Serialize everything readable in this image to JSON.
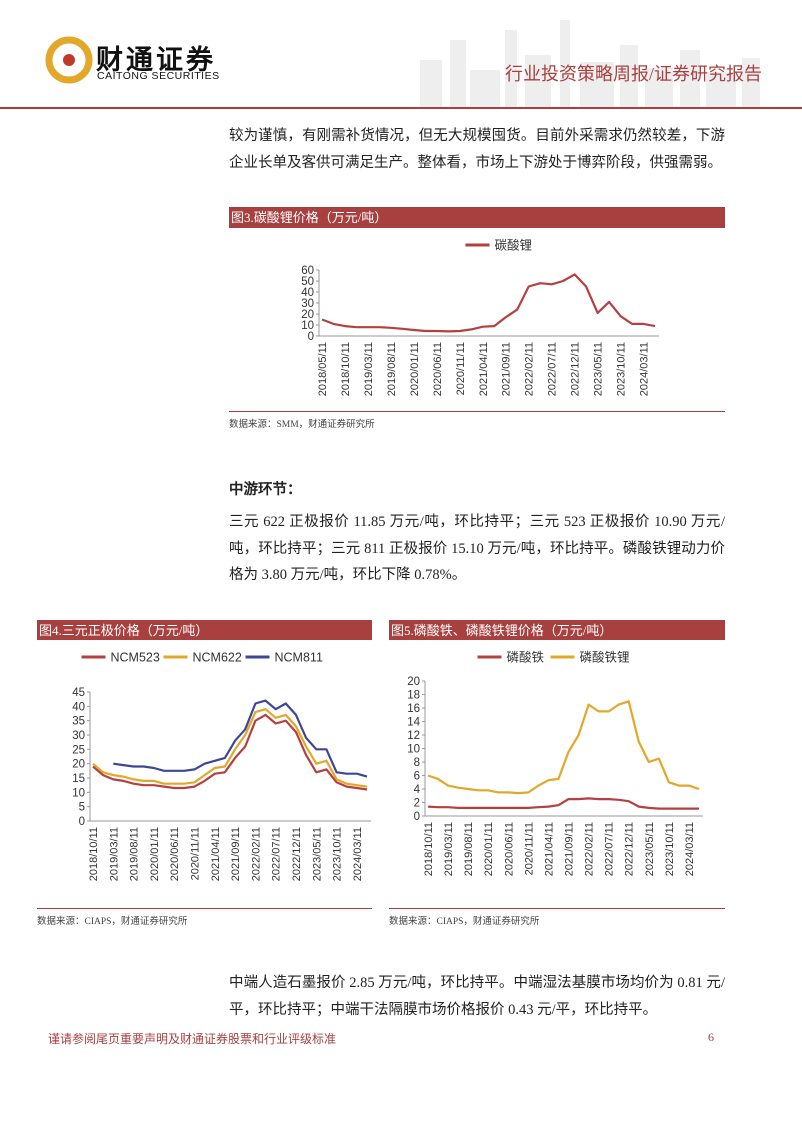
{
  "header": {
    "logo_cn": "财通证券",
    "logo_en": "CAITONG SECURITIES",
    "report_type": "行业投资策略周报/证券研究报告"
  },
  "paragraphs": [
    "较为谨慎，有刚需补货情况，但无大规模囤货。目前外采需求仍然较差，下游企业长单及客供可满足生产。整体看，市场上下游处于博弈阶段，供强需弱。",
    "三元 622 正极报价 11.85 万元/吨，环比持平；三元 523 正极报价 10.90 万元/吨，环比持平；三元 811 正极报价 15.10 万元/吨，环比持平。磷酸铁锂动力价格为 3.80 万元/吨，环比下降 0.78%。",
    "中端人造石墨报价 2.85 万元/吨，环比持平。中端湿法基膜市场均价为 0.81 元/平，环比持平；中端干法隔膜市场价格报价 0.43 元/平，环比持平。"
  ],
  "section_heading": "中游环节：",
  "footer": {
    "disclaimer": "谨请参阅尾页重要声明及财通证券股票和行业评级标准",
    "page_number": "6"
  },
  "chart_data": [
    {
      "type": "line",
      "title": "图3.碳酸锂价格（万元/吨）",
      "source": "数据来源：SMM，财通证券研究所",
      "categories": [
        "2018/05/11",
        null,
        "2018/10/11",
        null,
        "2019/03/11",
        null,
        "2019/08/11",
        null,
        "2020/01/11",
        null,
        "2020/06/11",
        null,
        "2020/11/11",
        null,
        "2021/04/11",
        null,
        "2021/09/11",
        null,
        "2022/02/11",
        null,
        "2022/07/11",
        null,
        "2022/12/11",
        null,
        "2023/05/11",
        null,
        "2023/10/11",
        null,
        "2024/03/11",
        null
      ],
      "series": [
        {
          "name": "碳酸锂",
          "color": "#b5403f",
          "values": [
            15,
            11,
            9,
            8,
            8,
            8,
            7.5,
            6.5,
            5.5,
            4.5,
            4.5,
            4.2,
            4.5,
            6,
            8.5,
            9,
            17,
            24,
            45,
            48,
            47,
            50,
            56,
            45,
            21,
            31,
            18,
            11,
            11,
            9
          ]
        }
      ],
      "ylim": [
        0,
        60
      ],
      "yticks": [
        0,
        10,
        20,
        30,
        40,
        50,
        60
      ]
    },
    {
      "type": "line",
      "title": "图4.三元正极价格（万元/吨）",
      "source": "数据来源：CIAPS，财通证券研究所",
      "categories": [
        "2018/10/11",
        null,
        "2019/03/11",
        null,
        "2019/08/11",
        null,
        "2020/01/11",
        null,
        "2020/06/11",
        null,
        "2020/11/11",
        null,
        "2021/04/11",
        null,
        "2021/09/11",
        null,
        "2022/02/11",
        null,
        "2022/07/11",
        null,
        "2022/12/11",
        null,
        "2023/05/11",
        null,
        "2023/10/11",
        null,
        "2024/03/11",
        null
      ],
      "series": [
        {
          "name": "NCM523",
          "color": "#b5403f",
          "values": [
            19,
            16,
            14.5,
            14,
            13,
            12.5,
            12.5,
            12,
            11.5,
            11.5,
            12,
            14,
            16.5,
            17,
            22,
            26,
            35,
            37,
            34,
            35,
            31,
            23,
            17,
            18,
            13.5,
            12,
            11.5,
            11
          ]
        },
        {
          "name": "NCM622",
          "color": "#e3a72a",
          "values": [
            20,
            17,
            16,
            15.5,
            14.5,
            14,
            14,
            13,
            13,
            13,
            13.5,
            16,
            18.5,
            19,
            25,
            30,
            38,
            39,
            36,
            37,
            33,
            26,
            20,
            21,
            14.5,
            13,
            12.5,
            12
          ]
        },
        {
          "name": "NCM811",
          "color": "#3d4795",
          "values": [
            null,
            null,
            20,
            19.5,
            19,
            19,
            18.5,
            17.5,
            17.5,
            17.5,
            18,
            20,
            21,
            22,
            28,
            32,
            41,
            42,
            39,
            41,
            37,
            29,
            25,
            25,
            17,
            16.5,
            16.5,
            15.5
          ]
        }
      ],
      "ylim": [
        0,
        45
      ],
      "yticks": [
        0,
        5,
        10,
        15,
        20,
        25,
        30,
        35,
        40,
        45
      ]
    },
    {
      "type": "line",
      "title": "图5.磷酸铁、磷酸铁锂价格（万元/吨）",
      "source": "数据来源：CIAPS，财通证券研究所",
      "categories": [
        "2018/10/11",
        null,
        "2019/03/11",
        null,
        "2019/08/11",
        null,
        "2020/01/11",
        null,
        "2020/06/11",
        null,
        "2020/11/11",
        null,
        "2021/04/11",
        null,
        "2021/09/11",
        null,
        "2022/02/11",
        null,
        "2022/07/11",
        null,
        "2022/12/11",
        null,
        "2023/05/11",
        null,
        "2023/10/11",
        null,
        "2024/03/11",
        null
      ],
      "series": [
        {
          "name": "磷酸铁",
          "color": "#b5403f",
          "values": [
            1.4,
            1.3,
            1.3,
            1.2,
            1.2,
            1.2,
            1.2,
            1.2,
            1.2,
            1.2,
            1.2,
            1.3,
            1.4,
            1.6,
            2.5,
            2.5,
            2.6,
            2.5,
            2.5,
            2.4,
            2.2,
            1.4,
            1.2,
            1.1,
            1.1,
            1.1,
            1.1,
            1.1
          ]
        },
        {
          "name": "磷酸铁锂",
          "color": "#e3a72a",
          "values": [
            6,
            5.5,
            4.5,
            4.2,
            4,
            3.8,
            3.8,
            3.5,
            3.5,
            3.4,
            3.5,
            4.5,
            5.3,
            5.5,
            9.5,
            12,
            16.5,
            15.5,
            15.5,
            16.5,
            17,
            11,
            8,
            8.5,
            5,
            4.5,
            4.5,
            4
          ]
        }
      ],
      "ylim": [
        0,
        20
      ],
      "yticks": [
        0,
        2,
        4,
        6,
        8,
        10,
        12,
        14,
        16,
        18,
        20
      ]
    }
  ]
}
